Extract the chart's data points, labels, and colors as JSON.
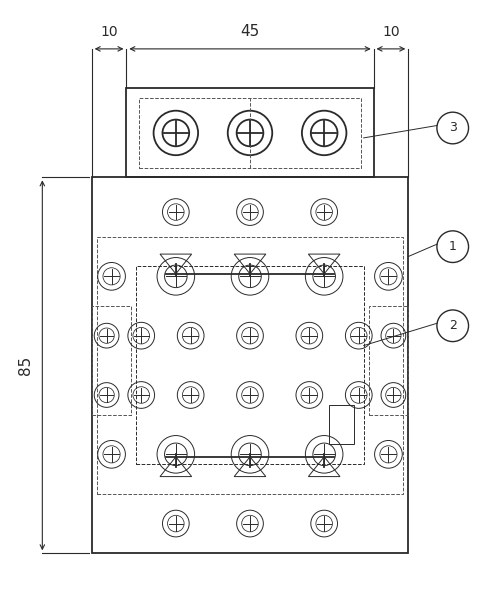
{
  "fig_width": 5.0,
  "fig_height": 6.12,
  "dpi": 100,
  "bg_color": "#ffffff",
  "line_color": "#2a2a2a",
  "dash_color": "#555555",
  "dim_10_left": "10",
  "dim_45": "45",
  "dim_10_right": "10",
  "dim_85": "85",
  "label_1": "1",
  "label_2": "2",
  "label_3": "3",
  "xlim": [
    0,
    100
  ],
  "ylim": [
    0,
    120
  ]
}
